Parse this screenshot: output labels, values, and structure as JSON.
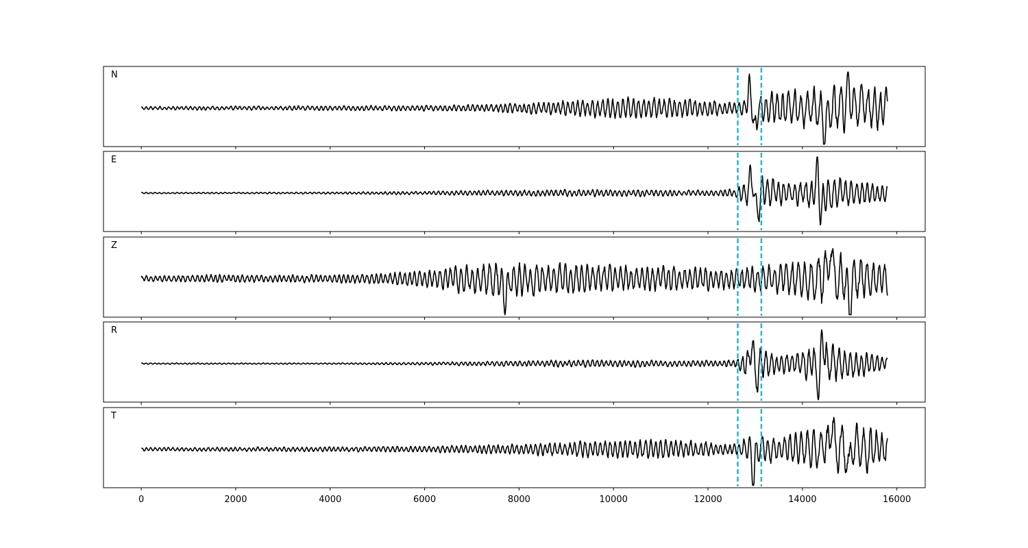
{
  "chart_data": {
    "type": "line",
    "title": "",
    "xlabel": "",
    "ylabel": "",
    "xlim": [
      -800,
      16600
    ],
    "x_ticks": [
      0,
      2000,
      4000,
      6000,
      8000,
      10000,
      12000,
      14000,
      16000
    ],
    "x_tick_labels": [
      "0",
      "2000",
      "4000",
      "6000",
      "8000",
      "10000",
      "12000",
      "14000",
      "16000"
    ],
    "y_ticks_shown": false,
    "grid": false,
    "legend": "none",
    "line_color": "#000000",
    "marker_color": "#17becf",
    "marker_style": "dashed",
    "markers_x": [
      12630,
      13130
    ],
    "x_range": [
      0,
      15800
    ],
    "panels": [
      {
        "label": "N",
        "ylim": [
          -1,
          1
        ],
        "envelope": [
          [
            0,
            0.05
          ],
          [
            2000,
            0.06
          ],
          [
            4000,
            0.07
          ],
          [
            6000,
            0.08
          ],
          [
            7500,
            0.12
          ],
          [
            9000,
            0.22
          ],
          [
            10000,
            0.3
          ],
          [
            11000,
            0.3
          ],
          [
            12000,
            0.25
          ],
          [
            12600,
            0.15
          ],
          [
            13000,
            0.5
          ],
          [
            13500,
            0.45
          ],
          [
            14000,
            0.6
          ],
          [
            14500,
            0.65
          ],
          [
            15000,
            0.75
          ],
          [
            15500,
            0.6
          ],
          [
            15800,
            0.55
          ]
        ],
        "spikes": [
          [
            12880,
            0.55
          ],
          [
            13000,
            -0.55
          ],
          [
            14480,
            -0.75
          ],
          [
            14980,
            0.8
          ]
        ]
      },
      {
        "label": "E",
        "ylim": [
          -1,
          1
        ],
        "envelope": [
          [
            0,
            0.02
          ],
          [
            2000,
            0.02
          ],
          [
            4000,
            0.03
          ],
          [
            6000,
            0.05
          ],
          [
            7500,
            0.08
          ],
          [
            9000,
            0.1
          ],
          [
            10500,
            0.1
          ],
          [
            12000,
            0.08
          ],
          [
            12600,
            0.12
          ],
          [
            13000,
            0.6
          ],
          [
            13500,
            0.35
          ],
          [
            14000,
            0.4
          ],
          [
            14500,
            0.5
          ],
          [
            15000,
            0.4
          ],
          [
            15500,
            0.3
          ],
          [
            15800,
            0.25
          ]
        ],
        "spikes": [
          [
            12920,
            0.55
          ],
          [
            13050,
            -0.65
          ],
          [
            14330,
            0.85
          ],
          [
            14380,
            -0.75
          ]
        ]
      },
      {
        "label": "Z",
        "ylim": [
          -1,
          1
        ],
        "envelope": [
          [
            0,
            0.08
          ],
          [
            1500,
            0.12
          ],
          [
            3000,
            0.1
          ],
          [
            5000,
            0.15
          ],
          [
            6000,
            0.25
          ],
          [
            6500,
            0.35
          ],
          [
            7500,
            0.55
          ],
          [
            8500,
            0.45
          ],
          [
            10000,
            0.4
          ],
          [
            11500,
            0.35
          ],
          [
            12500,
            0.3
          ],
          [
            13000,
            0.4
          ],
          [
            13500,
            0.45
          ],
          [
            14000,
            0.6
          ],
          [
            14500,
            0.8
          ],
          [
            15000,
            0.7
          ],
          [
            15800,
            0.45
          ]
        ],
        "spikes": [
          [
            7700,
            -0.65
          ],
          [
            14580,
            0.85
          ],
          [
            15000,
            -0.8
          ]
        ]
      },
      {
        "label": "R",
        "ylim": [
          -1,
          1
        ],
        "envelope": [
          [
            0,
            0.02
          ],
          [
            2000,
            0.02
          ],
          [
            4000,
            0.02
          ],
          [
            6000,
            0.04
          ],
          [
            7500,
            0.07
          ],
          [
            9000,
            0.1
          ],
          [
            10500,
            0.1
          ],
          [
            12000,
            0.08
          ],
          [
            12600,
            0.1
          ],
          [
            13000,
            0.65
          ],
          [
            13500,
            0.25
          ],
          [
            14000,
            0.4
          ],
          [
            14500,
            0.6
          ],
          [
            15000,
            0.45
          ],
          [
            15500,
            0.3
          ],
          [
            15800,
            0.2
          ]
        ],
        "spikes": [
          [
            12940,
            0.75
          ],
          [
            13010,
            -0.6
          ],
          [
            14350,
            -0.85
          ],
          [
            14420,
            0.8
          ]
        ]
      },
      {
        "label": "T",
        "ylim": [
          -1,
          1
        ],
        "envelope": [
          [
            0,
            0.05
          ],
          [
            2000,
            0.06
          ],
          [
            4000,
            0.07
          ],
          [
            6000,
            0.09
          ],
          [
            8000,
            0.15
          ],
          [
            9500,
            0.25
          ],
          [
            11000,
            0.28
          ],
          [
            12000,
            0.22
          ],
          [
            12600,
            0.15
          ],
          [
            13000,
            0.5
          ],
          [
            13500,
            0.35
          ],
          [
            14000,
            0.55
          ],
          [
            14500,
            0.7
          ],
          [
            15000,
            0.8
          ],
          [
            15500,
            0.6
          ],
          [
            15800,
            0.4
          ]
        ],
        "spikes": [
          [
            12960,
            -0.85
          ],
          [
            14620,
            0.8
          ],
          [
            15000,
            -0.95
          ],
          [
            15030,
            0.75
          ]
        ]
      }
    ]
  }
}
